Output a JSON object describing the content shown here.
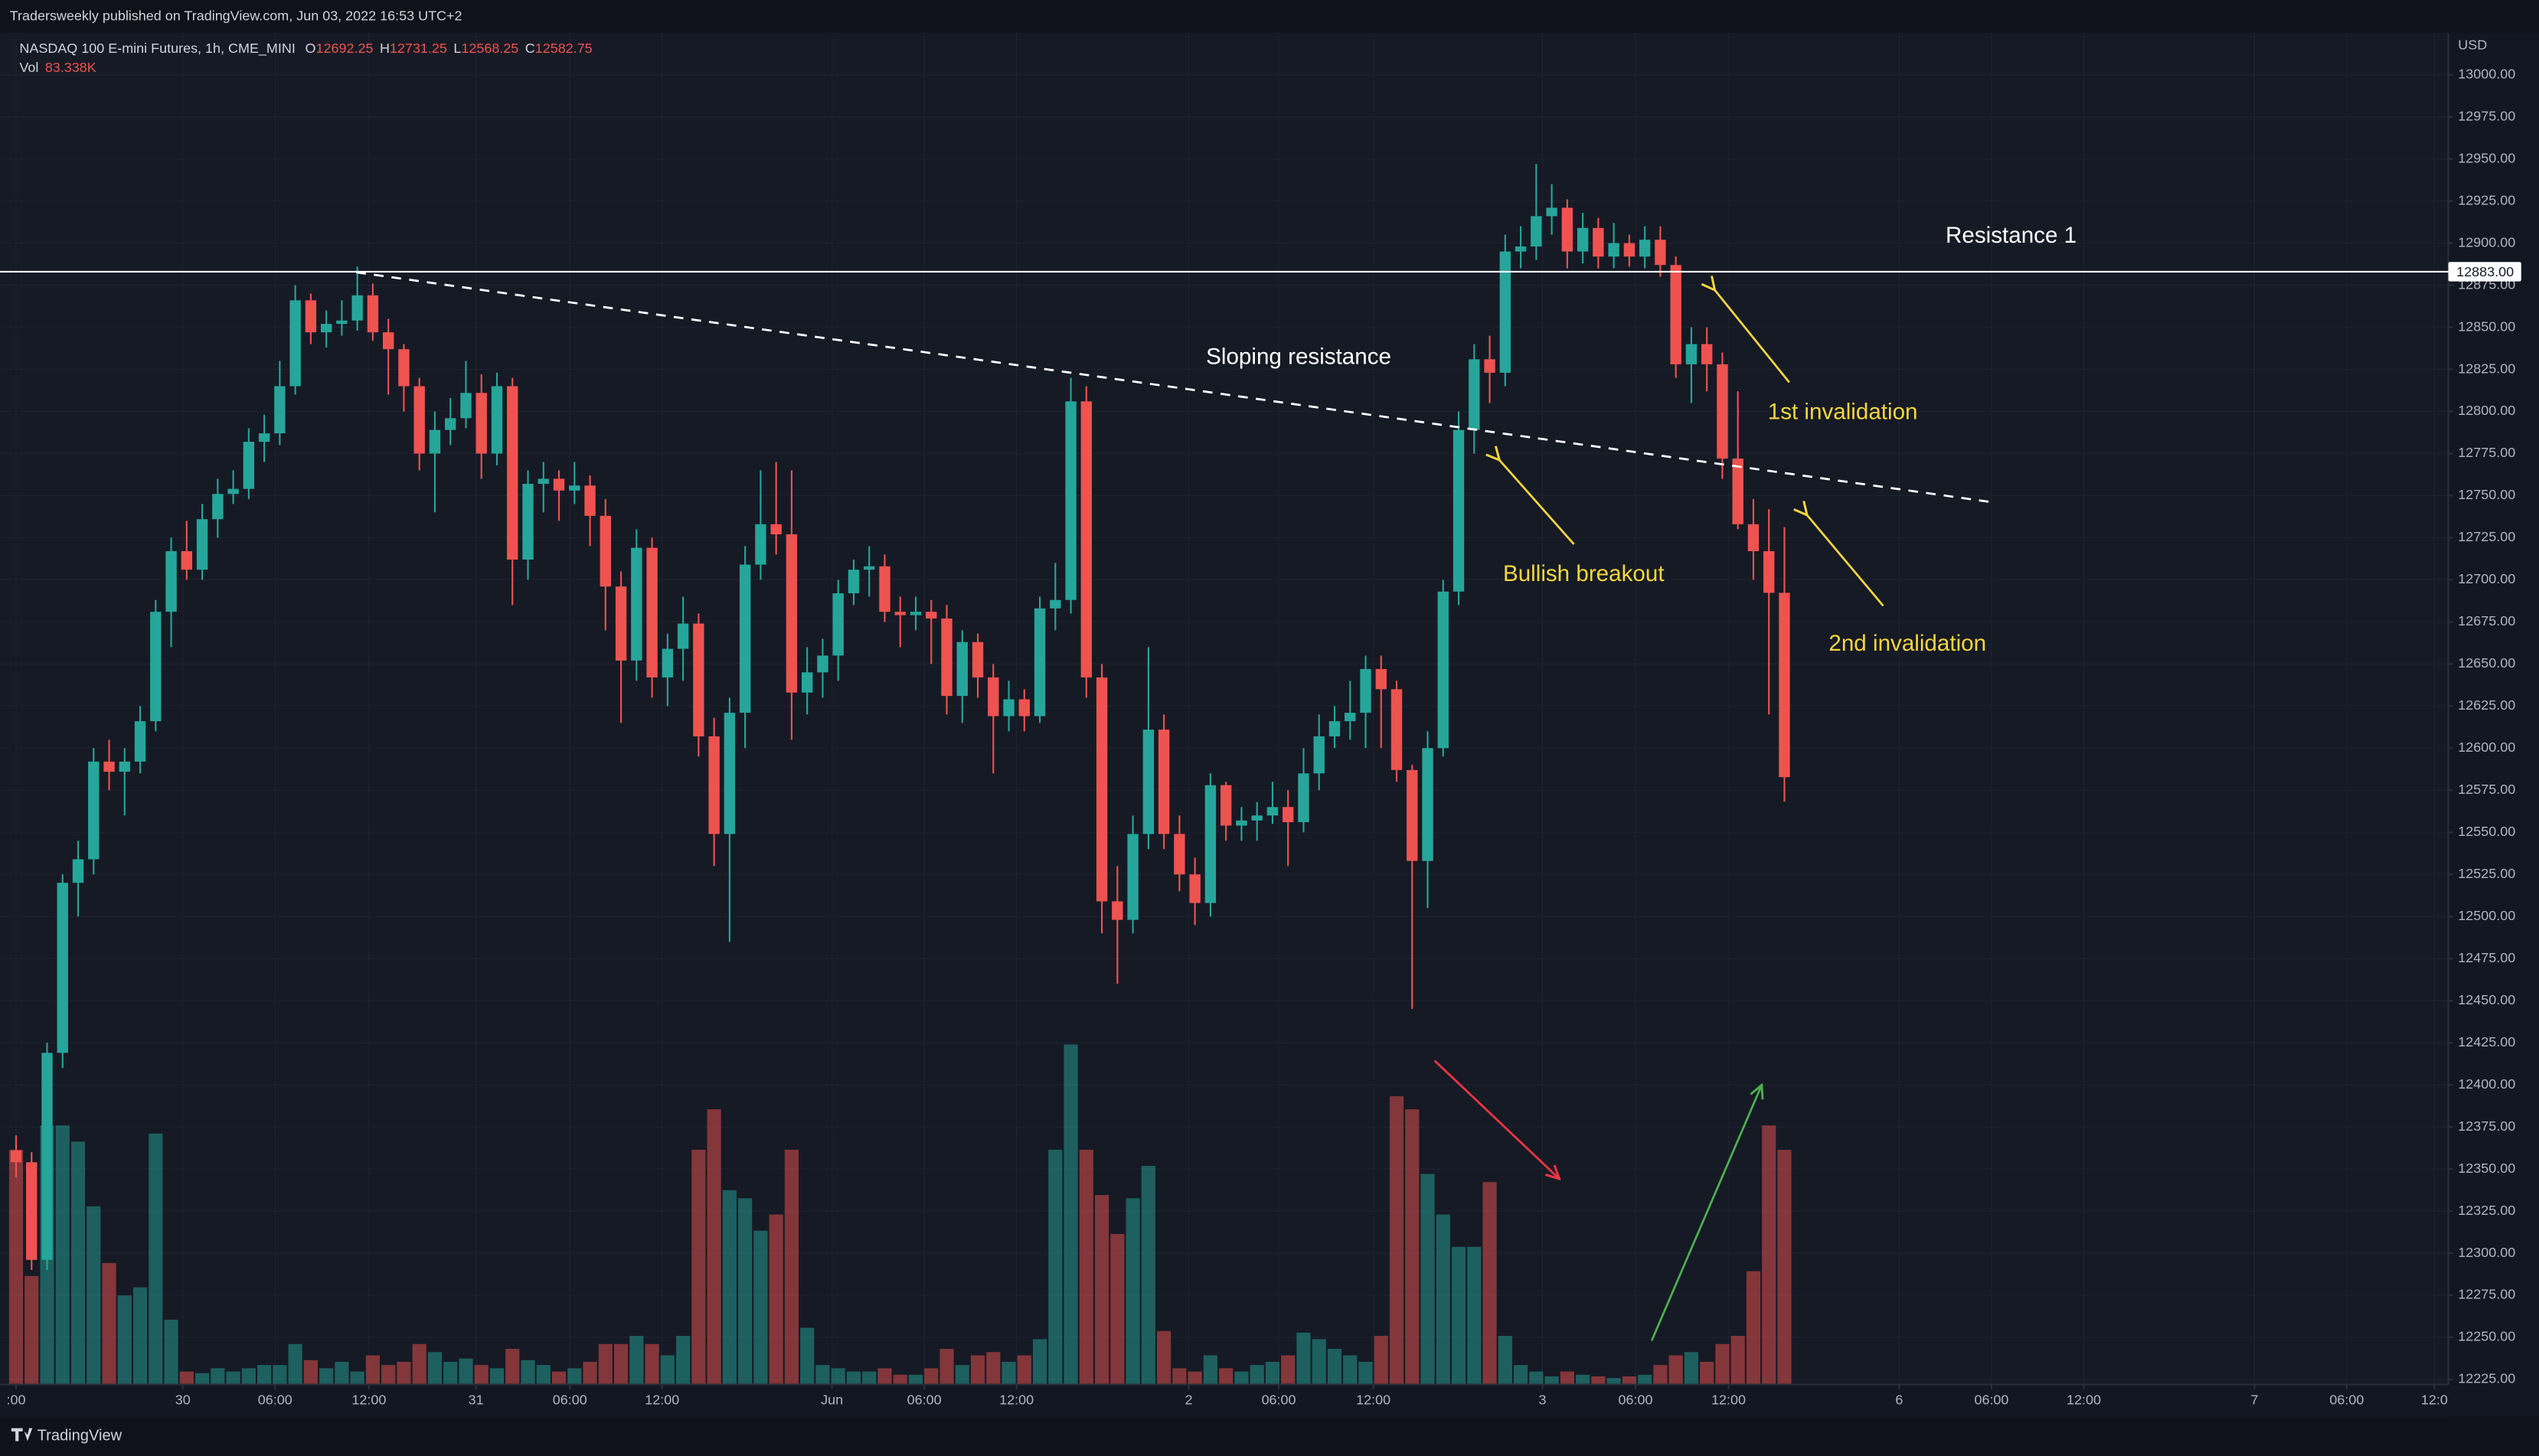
{
  "header": {
    "published": "Tradersweekly published on TradingView.com, Jun 03, 2022 16:53 UTC+2"
  },
  "footer": {
    "brand": "TradingView"
  },
  "chart_data": {
    "type": "candlestick",
    "title": "NASDAQ 100 E-mini Futures, 1h, CME_MINI",
    "ohlc_labels": [
      "O",
      "H",
      "L",
      "C"
    ],
    "volume_name": "Vol",
    "volume_value_label": "83.338K",
    "currency": "USD",
    "up_color": "#26a69a",
    "down_color": "#ef5350",
    "grid": true,
    "open": [
      12361,
      12354,
      12296,
      12419,
      12520,
      12534,
      12592,
      12586,
      12592,
      12616,
      12681,
      12717,
      12706,
      12736,
      12751,
      12754,
      12782,
      12787,
      12815,
      12866,
      12847,
      12852,
      12854,
      12869,
      12847,
      12837,
      12815,
      12775,
      12789,
      12796,
      12811,
      12775,
      12815,
      12712,
      12757,
      12760,
      12753,
      12756,
      12738,
      12696,
      12652,
      12719,
      12642,
      12659,
      12674,
      12607,
      12549,
      12621,
      12709,
      12733,
      12727,
      12633,
      12645,
      12655,
      12692,
      12706,
      12708,
      12681,
      12679,
      12681,
      12677,
      12631,
      12663,
      12642,
      12619,
      12629,
      12619,
      12683,
      12688,
      12806,
      12642,
      12509,
      12498,
      12549,
      12611,
      12549,
      12525,
      12508,
      12578,
      12554,
      12557,
      12560,
      12565,
      12556,
      12585,
      12607,
      12616,
      12621,
      12647,
      12635,
      12587,
      12533,
      12600,
      12693,
      12789,
      12831,
      12823,
      12895,
      12898,
      12916,
      12921,
      12895,
      12909,
      12892,
      12900,
      12892,
      12902,
      12887,
      12828,
      12840,
      12828,
      12772,
      12733,
      12717,
      12692.25
    ],
    "high": [
      12370,
      12360,
      12425,
      12525,
      12545,
      12600,
      12605,
      12600,
      12625,
      12688,
      12725,
      12735,
      12745,
      12760,
      12765,
      12790,
      12798,
      12830,
      12875,
      12870,
      12860,
      12866,
      12886,
      12876,
      12855,
      12840,
      12820,
      12800,
      12808,
      12830,
      12822,
      12823,
      12820,
      12765,
      12770,
      12765,
      12770,
      12762,
      12748,
      12705,
      12730,
      12725,
      12668,
      12690,
      12680,
      12618,
      12630,
      12720,
      12765,
      12770,
      12765,
      12660,
      12665,
      12700,
      12712,
      12720,
      12715,
      12690,
      12690,
      12688,
      12685,
      12670,
      12668,
      12650,
      12640,
      12635,
      12690,
      12710,
      12820,
      12815,
      12650,
      12530,
      12560,
      12660,
      12620,
      12560,
      12535,
      12585,
      12580,
      12565,
      12568,
      12580,
      12575,
      12600,
      12620,
      12625,
      12640,
      12655,
      12655,
      12640,
      12590,
      12610,
      12700,
      12800,
      12840,
      12845,
      12905,
      12910,
      12947,
      12935,
      12926,
      12918,
      12915,
      12912,
      12905,
      12910,
      12910,
      12892,
      12850,
      12850,
      12835,
      12812,
      12748,
      12742,
      12731.25
    ],
    "low": [
      12345,
      12290,
      12290,
      12410,
      12500,
      12525,
      12575,
      12560,
      12585,
      12610,
      12660,
      12700,
      12700,
      12725,
      12745,
      12748,
      12770,
      12780,
      12810,
      12840,
      12838,
      12845,
      12848,
      12842,
      12810,
      12800,
      12765,
      12740,
      12780,
      12790,
      12760,
      12768,
      12685,
      12700,
      12740,
      12735,
      12745,
      12720,
      12670,
      12615,
      12640,
      12630,
      12625,
      12640,
      12595,
      12530,
      12485,
      12600,
      12700,
      12715,
      12605,
      12620,
      12630,
      12640,
      12685,
      12690,
      12675,
      12660,
      12670,
      12650,
      12620,
      12615,
      12630,
      12585,
      12610,
      12610,
      12615,
      12670,
      12680,
      12630,
      12490,
      12460,
      12490,
      12540,
      12540,
      12515,
      12495,
      12500,
      12545,
      12545,
      12545,
      12555,
      12530,
      12550,
      12575,
      12600,
      12605,
      12600,
      12600,
      12580,
      12445,
      12505,
      12595,
      12685,
      12775,
      12805,
      12815,
      12885,
      12890,
      12905,
      12885,
      12888,
      12885,
      12885,
      12886,
      12885,
      12880,
      12820,
      12805,
      12812,
      12760,
      12730,
      12700,
      12620,
      12568.25
    ],
    "close": [
      12354,
      12296,
      12419,
      12520,
      12534,
      12592,
      12586,
      12592,
      12616,
      12681,
      12717,
      12706,
      12736,
      12751,
      12754,
      12782,
      12787,
      12815,
      12866,
      12847,
      12852,
      12854,
      12869,
      12847,
      12837,
      12815,
      12775,
      12789,
      12796,
      12811,
      12775,
      12815,
      12712,
      12757,
      12760,
      12753,
      12756,
      12738,
      12696,
      12652,
      12719,
      12642,
      12659,
      12674,
      12607,
      12549,
      12621,
      12709,
      12733,
      12727,
      12633,
      12645,
      12655,
      12692,
      12706,
      12708,
      12681,
      12679,
      12681,
      12677,
      12631,
      12663,
      12642,
      12619,
      12629,
      12619,
      12683,
      12688,
      12806,
      12642,
      12509,
      12498,
      12549,
      12611,
      12549,
      12525,
      12508,
      12578,
      12554,
      12557,
      12560,
      12565,
      12556,
      12585,
      12607,
      12616,
      12621,
      12647,
      12635,
      12587,
      12533,
      12600,
      12693,
      12789,
      12831,
      12823,
      12895,
      12898,
      12916,
      12921,
      12895,
      12909,
      12892,
      12900,
      12892,
      12902,
      12887,
      12828,
      12840,
      12828,
      12772,
      12733,
      12717,
      12692.25,
      12582.75
    ],
    "volume": [
      83375,
      38525,
      92000,
      92000,
      86250,
      63250,
      43125,
      31625,
      34500,
      89125,
      23000,
      4600,
      4025,
      5750,
      4600,
      5750,
      6900,
      6900,
      14375,
      8625,
      5750,
      8050,
      4600,
      10350,
      6900,
      8050,
      14375,
      11500,
      8050,
      9200,
      6900,
      5750,
      12650,
      8625,
      6900,
      4600,
      5750,
      8050,
      14375,
      14375,
      17250,
      14375,
      10350,
      17250,
      83375,
      97750,
      69000,
      66125,
      54625,
      60375,
      83375,
      20125,
      6900,
      5750,
      4600,
      4600,
      5750,
      3450,
      3450,
      5750,
      12650,
      6900,
      10350,
      11500,
      8050,
      10350,
      16100,
      83375,
      120750,
      83375,
      67275,
      53475,
      66125,
      77625,
      18975,
      5750,
      4600,
      10350,
      5750,
      4600,
      6900,
      8050,
      10350,
      18400,
      16100,
      12650,
      10350,
      8050,
      17250,
      102350,
      97750,
      74750,
      60375,
      48875,
      48875,
      71875,
      17250,
      6900,
      4600,
      2875,
      4600,
      3450,
      2875,
      2300,
      2875,
      3450,
      6900,
      10350,
      11500,
      8050,
      14375,
      17250,
      40250,
      92000,
      83338
    ],
    "ylim": [
      12222,
      13025
    ],
    "yticks": [
      {
        "value": 13000,
        "label": "13000.00"
      },
      {
        "value": 12975,
        "label": "12975.00"
      },
      {
        "value": 12950,
        "label": "12950.00"
      },
      {
        "value": 12925,
        "label": "12925.00"
      },
      {
        "value": 12900,
        "label": "12900.00"
      },
      {
        "value": 12875,
        "label": "12875.00"
      },
      {
        "value": 12850,
        "label": "12850.00"
      },
      {
        "value": 12825,
        "label": "12825.00"
      },
      {
        "value": 12800,
        "label": "12800.00"
      },
      {
        "value": 12775,
        "label": "12775.00"
      },
      {
        "value": 12750,
        "label": "12750.00"
      },
      {
        "value": 12725,
        "label": "12725.00"
      },
      {
        "value": 12700,
        "label": "12700.00"
      },
      {
        "value": 12675,
        "label": "12675.00"
      },
      {
        "value": 12650,
        "label": "12650.00"
      },
      {
        "value": 12625,
        "label": "12625.00"
      },
      {
        "value": 12600,
        "label": "12600.00"
      },
      {
        "value": 12575,
        "label": "12575.00"
      },
      {
        "value": 12550,
        "label": "12550.00"
      },
      {
        "value": 12525,
        "label": "12525.00"
      },
      {
        "value": 12500,
        "label": "12500.00"
      },
      {
        "value": 12475,
        "label": "12475.00"
      },
      {
        "value": 12450,
        "label": "12450.00"
      },
      {
        "value": 12425,
        "label": "12425.00"
      },
      {
        "value": 12400,
        "label": "12400.00"
      },
      {
        "value": 12375,
        "label": "12375.00"
      },
      {
        "value": 12350,
        "label": "12350.00"
      },
      {
        "value": 12325,
        "label": "12325.00"
      },
      {
        "value": 12300,
        "label": "12300.00"
      },
      {
        "value": 12275,
        "label": "12275.00"
      },
      {
        "value": 12250,
        "label": "12250.00"
      },
      {
        "value": 12225,
        "label": "12225.00"
      }
    ],
    "xlim": [
      -0.2,
      156.8
    ],
    "xticks": [
      {
        "value": 0,
        "label": ":00"
      },
      {
        "value": 10.75,
        "label": "30"
      },
      {
        "value": 16.7,
        "label": "06:00"
      },
      {
        "value": 22.75,
        "label": "12:00"
      },
      {
        "value": 29.65,
        "label": "31"
      },
      {
        "value": 35.7,
        "label": "06:00"
      },
      {
        "value": 41.65,
        "label": "12:00"
      },
      {
        "value": 52.6,
        "label": "Jun"
      },
      {
        "value": 58.55,
        "label": "06:00"
      },
      {
        "value": 64.5,
        "label": "12:00"
      },
      {
        "value": 75.6,
        "label": "2"
      },
      {
        "value": 81.4,
        "label": "06:00"
      },
      {
        "value": 87.5,
        "label": "12:00"
      },
      {
        "value": 98.4,
        "label": "3"
      },
      {
        "value": 104.4,
        "label": "06:00"
      },
      {
        "value": 110.4,
        "label": "12:00"
      },
      {
        "value": 121.4,
        "label": "6"
      },
      {
        "value": 127.35,
        "label": "06:00"
      },
      {
        "value": 133.3,
        "label": "12:00"
      },
      {
        "value": 144.3,
        "label": "7"
      },
      {
        "value": 150.25,
        "label": "06:00"
      },
      {
        "value": 155.9,
        "label": "12:0"
      }
    ],
    "resistance": {
      "value": 12883,
      "label": "12883.00"
    },
    "annotations": [
      "Resistance 1",
      "Sloping resistance",
      "1st invalidation",
      "Bullish breakout",
      "2nd invalidation"
    ]
  }
}
